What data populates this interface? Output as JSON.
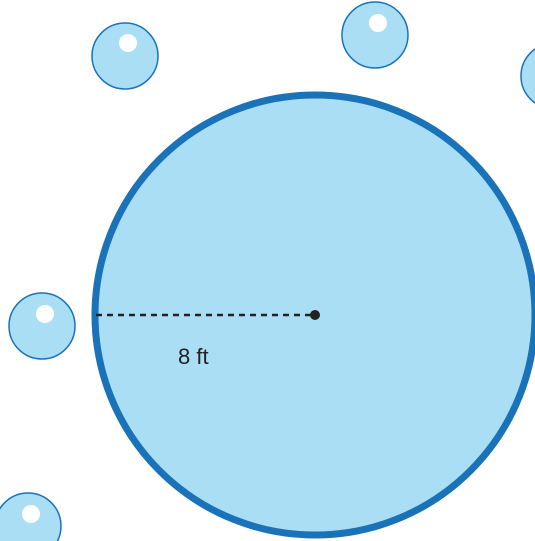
{
  "diagram": {
    "radius_label": "8 ft",
    "colors": {
      "circle_fill": "#a9def4",
      "circle_stroke": "#1a73b9",
      "bubble_fill": "#a9def4",
      "bubble_stroke": "#1a73b9",
      "bubble_highlight": "#ffffff",
      "radius_line": "#222222",
      "label_text": "#222222"
    },
    "icons": {
      "bubble": "bubble-icon",
      "center": "center-dot"
    }
  }
}
